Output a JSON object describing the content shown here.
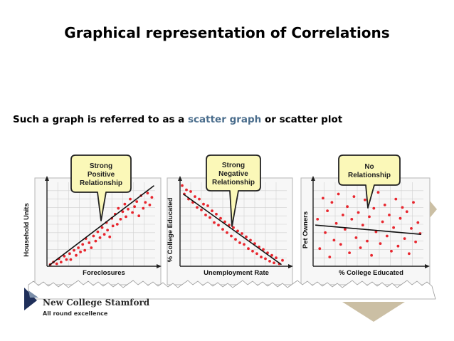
{
  "slide": {
    "title": "Graphical representation of Correlations",
    "subtitle_before": "Such a graph is referred to as a ",
    "subtitle_highlight": "scatter graph",
    "subtitle_after": " or scatter plot",
    "highlight_color": "#4a6d8c"
  },
  "logo": {
    "name": "New College Stamford",
    "tagline": "All round excellence"
  },
  "colors": {
    "point": "#e8262e",
    "callout_fill": "#fbf8b8",
    "callout_stroke": "#222222",
    "panel_border": "#b5b5b5",
    "grid": "#d0d0d0",
    "accent_triangle": "#cbbfa4"
  },
  "chart_data": [
    {
      "type": "scatter",
      "title": "Strong Positive Relationship",
      "xlabel": "Foreclosures",
      "ylabel": "Household Units",
      "xlim": [
        0,
        10
      ],
      "ylim": [
        0,
        10
      ],
      "grid": true,
      "points": [
        [
          0.3,
          0.2
        ],
        [
          0.6,
          0.5
        ],
        [
          0.9,
          0.3
        ],
        [
          1.1,
          0.9
        ],
        [
          1.3,
          0.5
        ],
        [
          1.6,
          1.2
        ],
        [
          1.8,
          0.8
        ],
        [
          2.1,
          1.5
        ],
        [
          2.2,
          0.8
        ],
        [
          2.5,
          1.9
        ],
        [
          2.7,
          1.3
        ],
        [
          2.9,
          2.2
        ],
        [
          3.1,
          1.7
        ],
        [
          3.3,
          2.6
        ],
        [
          3.5,
          1.9
        ],
        [
          3.6,
          3.3
        ],
        [
          3.9,
          2.8
        ],
        [
          4.1,
          2.2
        ],
        [
          4.3,
          3.6
        ],
        [
          4.5,
          3.0
        ],
        [
          4.7,
          4.1
        ],
        [
          4.9,
          3.4
        ],
        [
          5.1,
          4.6
        ],
        [
          5.3,
          3.8
        ],
        [
          5.5,
          5.2
        ],
        [
          5.6,
          4.3
        ],
        [
          5.8,
          3.5
        ],
        [
          6.0,
          5.7
        ],
        [
          6.1,
          4.8
        ],
        [
          6.3,
          6.2
        ],
        [
          6.5,
          5.0
        ],
        [
          6.6,
          6.9
        ],
        [
          6.8,
          5.6
        ],
        [
          7.0,
          6.5
        ],
        [
          7.2,
          7.4
        ],
        [
          7.3,
          5.9
        ],
        [
          7.5,
          6.8
        ],
        [
          7.7,
          8.0
        ],
        [
          7.9,
          6.4
        ],
        [
          8.1,
          7.1
        ],
        [
          8.3,
          7.7
        ],
        [
          8.5,
          6.0
        ],
        [
          8.7,
          8.4
        ],
        [
          8.9,
          6.9
        ],
        [
          9.1,
          7.6
        ],
        [
          9.3,
          8.7
        ],
        [
          9.5,
          7.3
        ],
        [
          9.7,
          8.2
        ]
      ],
      "trend": [
        [
          0.2,
          0.1
        ],
        [
          9.9,
          9.6
        ]
      ]
    },
    {
      "type": "scatter",
      "title": "Strong Negative Relationship",
      "xlabel": "Unemployment Rate",
      "ylabel": "% College Educated",
      "xlim": [
        0,
        10
      ],
      "ylim": [
        0,
        10
      ],
      "grid": true,
      "points": [
        [
          0.2,
          9.6
        ],
        [
          0.4,
          8.6
        ],
        [
          0.6,
          9.1
        ],
        [
          0.8,
          8.0
        ],
        [
          1.0,
          8.9
        ],
        [
          1.2,
          7.6
        ],
        [
          1.4,
          8.3
        ],
        [
          1.6,
          7.0
        ],
        [
          1.8,
          8.0
        ],
        [
          2.0,
          6.7
        ],
        [
          2.2,
          7.4
        ],
        [
          2.4,
          6.1
        ],
        [
          2.6,
          7.2
        ],
        [
          2.8,
          5.8
        ],
        [
          3.0,
          6.6
        ],
        [
          3.2,
          5.2
        ],
        [
          3.4,
          6.2
        ],
        [
          3.6,
          4.9
        ],
        [
          3.8,
          5.7
        ],
        [
          4.0,
          4.4
        ],
        [
          4.2,
          5.3
        ],
        [
          4.4,
          4.0
        ],
        [
          4.6,
          4.9
        ],
        [
          4.8,
          3.6
        ],
        [
          5.0,
          4.6
        ],
        [
          5.2,
          3.2
        ],
        [
          5.4,
          4.2
        ],
        [
          5.6,
          2.8
        ],
        [
          5.8,
          3.9
        ],
        [
          6.0,
          2.6
        ],
        [
          6.2,
          3.5
        ],
        [
          6.4,
          2.1
        ],
        [
          6.6,
          3.1
        ],
        [
          6.8,
          1.8
        ],
        [
          7.0,
          2.7
        ],
        [
          7.2,
          1.5
        ],
        [
          7.4,
          2.3
        ],
        [
          7.6,
          1.1
        ],
        [
          7.8,
          2.0
        ],
        [
          8.0,
          0.9
        ],
        [
          8.2,
          1.6
        ],
        [
          8.4,
          0.6
        ],
        [
          8.6,
          1.3
        ],
        [
          8.8,
          0.4
        ],
        [
          9.0,
          1.0
        ],
        [
          9.3,
          0.3
        ],
        [
          9.6,
          0.7
        ]
      ],
      "trend": [
        [
          0.3,
          8.6
        ],
        [
          9.5,
          0.2
        ]
      ]
    },
    {
      "type": "scatter",
      "title": "No Relationship",
      "xlabel": "% College Educated",
      "ylabel": "Pet Owners",
      "xlim": [
        0,
        10
      ],
      "ylim": [
        0,
        10
      ],
      "grid": true,
      "points": [
        [
          0.4,
          5.6
        ],
        [
          0.6,
          2.1
        ],
        [
          0.9,
          8.1
        ],
        [
          1.1,
          4.0
        ],
        [
          1.3,
          6.6
        ],
        [
          1.5,
          1.1
        ],
        [
          1.7,
          7.6
        ],
        [
          1.9,
          3.1
        ],
        [
          2.1,
          5.1
        ],
        [
          2.3,
          8.6
        ],
        [
          2.5,
          2.6
        ],
        [
          2.7,
          6.1
        ],
        [
          2.9,
          4.4
        ],
        [
          3.1,
          7.1
        ],
        [
          3.3,
          1.6
        ],
        [
          3.5,
          5.6
        ],
        [
          3.7,
          8.3
        ],
        [
          3.9,
          3.4
        ],
        [
          4.1,
          6.4
        ],
        [
          4.3,
          2.2
        ],
        [
          4.5,
          4.9
        ],
        [
          4.7,
          7.9
        ],
        [
          4.9,
          3.0
        ],
        [
          5.1,
          5.9
        ],
        [
          5.3,
          1.3
        ],
        [
          5.5,
          6.9
        ],
        [
          5.7,
          4.1
        ],
        [
          5.9,
          8.8
        ],
        [
          6.1,
          2.7
        ],
        [
          6.3,
          5.3
        ],
        [
          6.5,
          7.3
        ],
        [
          6.7,
          3.6
        ],
        [
          6.9,
          6.1
        ],
        [
          7.1,
          1.8
        ],
        [
          7.3,
          4.6
        ],
        [
          7.5,
          8.0
        ],
        [
          7.7,
          2.4
        ],
        [
          7.9,
          5.7
        ],
        [
          8.1,
          7.0
        ],
        [
          8.3,
          3.3
        ],
        [
          8.5,
          6.5
        ],
        [
          8.7,
          1.5
        ],
        [
          8.9,
          4.5
        ],
        [
          9.1,
          7.6
        ],
        [
          9.3,
          2.9
        ],
        [
          9.5,
          5.2
        ],
        [
          9.7,
          3.9
        ]
      ],
      "trend": [
        [
          0.2,
          4.9
        ],
        [
          9.8,
          3.8
        ]
      ]
    }
  ]
}
